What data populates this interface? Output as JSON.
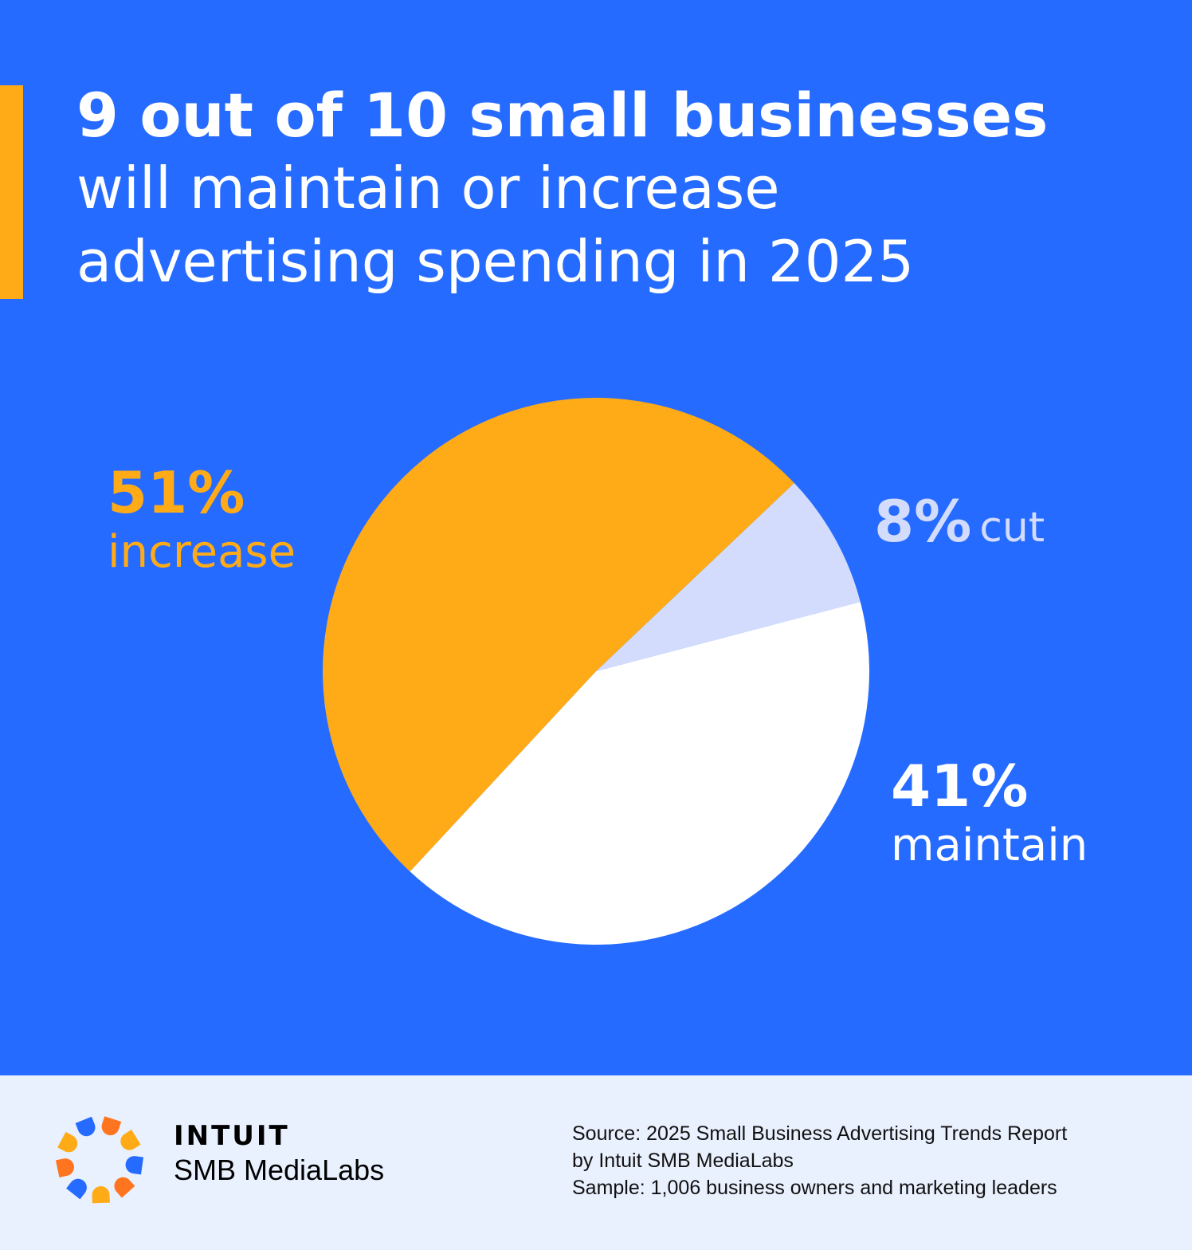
{
  "title": {
    "line1": "9 out of 10 small businesses",
    "line2": "will maintain or increase",
    "line3": "advertising spending in 2025"
  },
  "labels": {
    "increase": {
      "pct": "51%",
      "text": "increase"
    },
    "cut": {
      "pct": "8%",
      "text": "cut"
    },
    "maintain": {
      "pct": "41%",
      "text": "maintain"
    }
  },
  "colors": {
    "background": "#266bff",
    "accent": "#ffab17",
    "increase": "#ffab17",
    "cut": "#d3dcfc",
    "maintain": "#ffffff",
    "footer": "#e9f0fe"
  },
  "footer": {
    "brand_top": "INTUIT",
    "brand_bottom": "SMB MediaLabs",
    "source_lines": [
      "Source: 2025 Small Business Advertising Trends Report",
      "by Intuit SMB MediaLabs",
      "Sample: 1,006 business owners and marketing leaders"
    ]
  },
  "chart_data": {
    "type": "pie",
    "title": "9 out of 10 small businesses will maintain or increase advertising spending in 2025",
    "categories": [
      "increase",
      "cut",
      "maintain"
    ],
    "values": [
      51,
      8,
      41
    ],
    "unit": "%",
    "colors": [
      "#ffab17",
      "#d3dcfc",
      "#ffffff"
    ],
    "legend": "direct labels"
  }
}
